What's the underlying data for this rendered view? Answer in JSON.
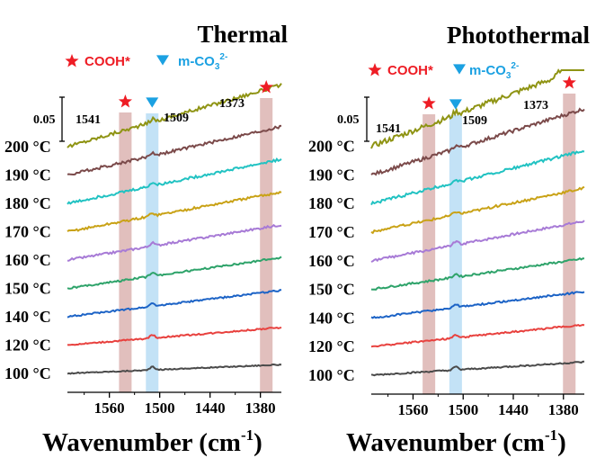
{
  "colors": {
    "cooh": "#ee1c24",
    "mco3": "#1ba1e2",
    "cooh_band": "#c98a86",
    "mco3_band": "#a9d6f2",
    "series": [
      "#4a4a4a",
      "#e8413e",
      "#1c63c6",
      "#2ea36a",
      "#a77ad6",
      "#c9a216",
      "#21c2c2",
      "#7b4a4a",
      "#8f9414"
    ]
  },
  "chart_data": [
    {
      "type": "line",
      "title": "Thermal",
      "xlabel": "Wavenumber (cm",
      "xlabel_sup": "-1",
      "xlabel_close": ")",
      "xlim": [
        1610,
        1355
      ],
      "xticks": [
        "1560",
        "1500",
        "1440",
        "1380"
      ],
      "legend": {
        "cooh_label": "COOH*",
        "mco3_label": "m-CO",
        "mco3_sub": "3",
        "mco3_sup": "2-"
      },
      "bands": [
        {
          "kind": "cooh",
          "center": 1541,
          "label": "1541"
        },
        {
          "kind": "mco3",
          "center": 1509,
          "label": "1509"
        },
        {
          "kind": "cooh",
          "center": 1373,
          "label": "1373"
        }
      ],
      "scale_bar": "0.05",
      "series": [
        {
          "name": "100 °C",
          "rise": 0.01,
          "noise": 0.0006
        },
        {
          "name": "120 °C",
          "rise": 0.02,
          "noise": 0.0008
        },
        {
          "name": "140 °C",
          "rise": 0.03,
          "noise": 0.0009
        },
        {
          "name": "150 °C",
          "rise": 0.035,
          "noise": 0.001
        },
        {
          "name": "160 °C",
          "rise": 0.04,
          "noise": 0.0012
        },
        {
          "name": "170 °C",
          "rise": 0.045,
          "noise": 0.0013
        },
        {
          "name": "180 °C",
          "rise": 0.05,
          "noise": 0.0014
        },
        {
          "name": "190 °C",
          "rise": 0.055,
          "noise": 0.0016
        },
        {
          "name": "200 °C",
          "rise": 0.07,
          "noise": 0.002
        }
      ]
    },
    {
      "type": "line",
      "title": "Photothermal",
      "xlabel": "Wavenumber (cm",
      "xlabel_sup": "-1",
      "xlabel_close": ")",
      "xlim": [
        1610,
        1355
      ],
      "xticks": [
        "1560",
        "1500",
        "1440",
        "1380"
      ],
      "legend": {
        "cooh_label": "COOH*",
        "mco3_label": "m-CO",
        "mco3_sub": "3",
        "mco3_sup": "2-"
      },
      "bands": [
        {
          "kind": "cooh",
          "center": 1541,
          "label": "1541"
        },
        {
          "kind": "mco3",
          "center": 1509,
          "label": "1509"
        },
        {
          "kind": "cooh",
          "center": 1373,
          "label": "1373"
        }
      ],
      "scale_bar": "0.05",
      "series": [
        {
          "name": "100 °C",
          "rise": 0.015,
          "noise": 0.0008
        },
        {
          "name": "120 °C",
          "rise": 0.025,
          "noise": 0.0009
        },
        {
          "name": "140 °C",
          "rise": 0.03,
          "noise": 0.001
        },
        {
          "name": "150 °C",
          "rise": 0.035,
          "noise": 0.0011
        },
        {
          "name": "160 °C",
          "rise": 0.045,
          "noise": 0.0013
        },
        {
          "name": "170 °C",
          "rise": 0.05,
          "noise": 0.0014
        },
        {
          "name": "180 °C",
          "rise": 0.06,
          "noise": 0.0016
        },
        {
          "name": "190 °C",
          "rise": 0.075,
          "noise": 0.002
        },
        {
          "name": "200 °C",
          "rise": 0.09,
          "noise": 0.003,
          "tail": 0.12
        }
      ]
    }
  ]
}
